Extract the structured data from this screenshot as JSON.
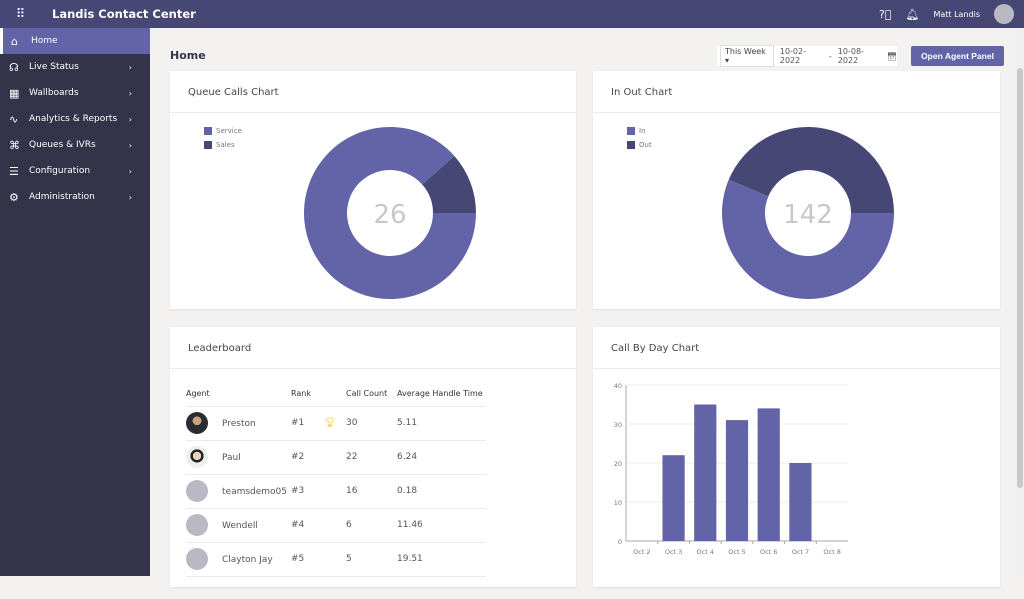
{
  "app": {
    "title": "Landis Contact Center",
    "user": "Matt Landis"
  },
  "sidebar": {
    "items": [
      {
        "label": "Home",
        "icon": "home-icon",
        "glyph": "⌂"
      },
      {
        "label": "Live Status",
        "icon": "headset-icon",
        "glyph": "☊"
      },
      {
        "label": "Wallboards",
        "icon": "grid-icon",
        "glyph": "▦"
      },
      {
        "label": "Analytics & Reports",
        "icon": "pulse-icon",
        "glyph": "∿"
      },
      {
        "label": "Queues & IVRs",
        "icon": "hierarchy-icon",
        "glyph": "⌘"
      },
      {
        "label": "Configuration",
        "icon": "checklist-icon",
        "glyph": "☰"
      },
      {
        "label": "Administration",
        "icon": "gear-icon",
        "glyph": "⚙"
      }
    ]
  },
  "page": {
    "title": "Home",
    "range_select": "This Week",
    "date_from": "10-02-2022",
    "date_sep": "-",
    "date_to": "10-08-2022",
    "open_agent_panel": "Open Agent Panel"
  },
  "colors": {
    "primary": "#6264a7",
    "dark": "#464775"
  },
  "chart_data": [
    {
      "type": "pie",
      "title": "Queue Calls Chart",
      "center_label": "26",
      "categories": [
        "Service",
        "Sales"
      ],
      "values": [
        23,
        3
      ],
      "colors": [
        "#6264a7",
        "#464775"
      ],
      "legend": "top-left"
    },
    {
      "type": "pie",
      "title": "In Out Chart",
      "center_label": "142",
      "categories": [
        "In",
        "Out"
      ],
      "values": [
        80,
        62
      ],
      "colors": [
        "#6264a7",
        "#464775"
      ],
      "legend": "top-left"
    },
    {
      "type": "bar",
      "title": "Call By Day Chart",
      "categories": [
        "Oct 2",
        "Oct 3",
        "Oct 4",
        "Oct 5",
        "Oct 6",
        "Oct 7",
        "Oct 8"
      ],
      "values": [
        0,
        22,
        35,
        31,
        34,
        20,
        0
      ],
      "ylim": [
        0,
        40
      ],
      "yticks": [
        "0",
        "10",
        "20",
        "30",
        "40"
      ],
      "grid": true,
      "color": "#6264a7"
    }
  ],
  "leaderboard": {
    "title": "Leaderboard",
    "headers": [
      "Agent",
      "Rank",
      "Call Count",
      "Average Handle Time"
    ],
    "rows": [
      {
        "agent": "Preston",
        "rank": "#1",
        "count": "30",
        "aht": "5.11"
      },
      {
        "agent": "Paul",
        "rank": "#2",
        "count": "22",
        "aht": "6.24"
      },
      {
        "agent": "teamsdemo05",
        "rank": "#3",
        "count": "16",
        "aht": "0.18"
      },
      {
        "agent": "Wendell",
        "rank": "#4",
        "count": "6",
        "aht": "11.46"
      },
      {
        "agent": "Clayton Jay",
        "rank": "#5",
        "count": "5",
        "aht": "19.51"
      }
    ]
  }
}
